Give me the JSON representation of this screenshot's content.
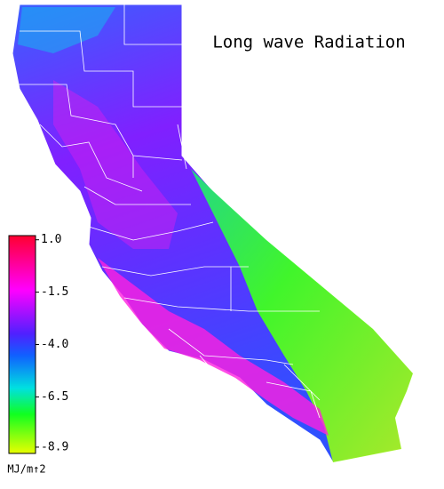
{
  "map": {
    "title": "Long wave Radiation",
    "colorbar": {
      "clim": [
        -9.2,
        1.2
      ],
      "ticks": [
        {
          "value": 1,
          "label": "1.0"
        },
        -1.5,
        {
          "value": -4,
          "label": "-4.0"
        },
        -6.5,
        -8.9
      ],
      "unit": "MJ/m↑2"
    }
  }
}
